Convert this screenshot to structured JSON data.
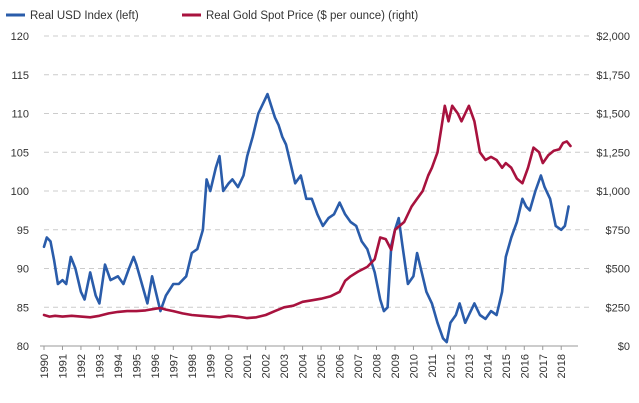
{
  "chart_data": {
    "type": "line",
    "legend": {
      "placement": "top-left"
    },
    "grid": {
      "horizontal": true,
      "vertical": false,
      "style": "dashed"
    },
    "x": {
      "type": "year",
      "range": [
        1990,
        2018.8
      ],
      "tick_labels": [
        "1990",
        "1991",
        "1992",
        "1993",
        "1994",
        "1995",
        "1996",
        "1997",
        "1998",
        "1999",
        "2000",
        "2001",
        "2002",
        "2003",
        "2004",
        "2005",
        "2006",
        "2007",
        "2008",
        "2009",
        "2010",
        "2011",
        "2012",
        "2013",
        "2014",
        "2015",
        "2016",
        "2017",
        "2018"
      ]
    },
    "y_left": {
      "range": [
        80,
        120
      ],
      "ticks": [
        80,
        85,
        90,
        95,
        100,
        105,
        110,
        115,
        120
      ],
      "tick_labels": [
        "80",
        "85",
        "90",
        "95",
        "100",
        "105",
        "110",
        "115",
        "120"
      ]
    },
    "y_right": {
      "range": [
        0,
        2000
      ],
      "ticks": [
        0,
        250,
        500,
        750,
        1000,
        1250,
        1500,
        1750,
        2000
      ],
      "tick_labels": [
        "$0",
        "$250",
        "$500",
        "$750",
        "$1,000",
        "$1,250",
        "$1,500",
        "$1,750",
        "$2,000"
      ]
    },
    "series": [
      {
        "name": "Real USD Index (left)",
        "axis": "left",
        "color": "#2a5caa",
        "points": [
          [
            1990.0,
            92.8
          ],
          [
            1990.15,
            94.0
          ],
          [
            1990.35,
            93.5
          ],
          [
            1990.55,
            91.0
          ],
          [
            1990.75,
            88.0
          ],
          [
            1991.0,
            88.5
          ],
          [
            1991.2,
            88.0
          ],
          [
            1991.45,
            91.5
          ],
          [
            1991.7,
            90.0
          ],
          [
            1992.0,
            87.0
          ],
          [
            1992.2,
            86.0
          ],
          [
            1992.5,
            89.5
          ],
          [
            1992.8,
            86.5
          ],
          [
            1993.0,
            85.5
          ],
          [
            1993.3,
            90.5
          ],
          [
            1993.6,
            88.5
          ],
          [
            1994.0,
            89.0
          ],
          [
            1994.3,
            88.0
          ],
          [
            1994.6,
            90.0
          ],
          [
            1994.85,
            91.5
          ],
          [
            1995.0,
            90.5
          ],
          [
            1995.3,
            88.0
          ],
          [
            1995.6,
            85.5
          ],
          [
            1995.85,
            89.0
          ],
          [
            1996.1,
            86.5
          ],
          [
            1996.3,
            84.5
          ],
          [
            1996.6,
            86.5
          ],
          [
            1997.0,
            88.0
          ],
          [
            1997.3,
            88.0
          ],
          [
            1997.7,
            89.0
          ],
          [
            1998.0,
            92.0
          ],
          [
            1998.3,
            92.5
          ],
          [
            1998.6,
            95.0
          ],
          [
            1998.8,
            101.5
          ],
          [
            1999.0,
            100.0
          ],
          [
            1999.3,
            103.0
          ],
          [
            1999.5,
            104.5
          ],
          [
            1999.7,
            100.0
          ],
          [
            2000.0,
            101.0
          ],
          [
            2000.2,
            101.5
          ],
          [
            2000.5,
            100.5
          ],
          [
            2000.8,
            102.0
          ],
          [
            2001.0,
            104.5
          ],
          [
            2001.3,
            107.0
          ],
          [
            2001.6,
            110.0
          ],
          [
            2001.9,
            111.5
          ],
          [
            2002.1,
            112.5
          ],
          [
            2002.3,
            111.0
          ],
          [
            2002.5,
            109.5
          ],
          [
            2002.7,
            108.5
          ],
          [
            2002.9,
            107.0
          ],
          [
            2003.1,
            106.0
          ],
          [
            2003.3,
            104.0
          ],
          [
            2003.6,
            101.0
          ],
          [
            2003.9,
            102.0
          ],
          [
            2004.2,
            99.0
          ],
          [
            2004.5,
            99.0
          ],
          [
            2004.8,
            97.0
          ],
          [
            2005.1,
            95.5
          ],
          [
            2005.4,
            96.5
          ],
          [
            2005.7,
            97.0
          ],
          [
            2006.0,
            98.5
          ],
          [
            2006.3,
            97.0
          ],
          [
            2006.6,
            96.0
          ],
          [
            2006.9,
            95.5
          ],
          [
            2007.2,
            93.5
          ],
          [
            2007.5,
            92.5
          ],
          [
            2007.9,
            89.5
          ],
          [
            2008.2,
            86.0
          ],
          [
            2008.4,
            84.5
          ],
          [
            2008.6,
            85.0
          ],
          [
            2008.8,
            93.0
          ],
          [
            2009.0,
            95.0
          ],
          [
            2009.2,
            96.5
          ],
          [
            2009.4,
            93.0
          ],
          [
            2009.7,
            88.0
          ],
          [
            2010.0,
            89.0
          ],
          [
            2010.2,
            92.0
          ],
          [
            2010.4,
            90.0
          ],
          [
            2010.7,
            87.0
          ],
          [
            2011.0,
            85.5
          ],
          [
            2011.3,
            83.0
          ],
          [
            2011.6,
            81.0
          ],
          [
            2011.8,
            80.5
          ],
          [
            2012.0,
            83.0
          ],
          [
            2012.3,
            84.0
          ],
          [
            2012.5,
            85.5
          ],
          [
            2012.8,
            83.0
          ],
          [
            2013.0,
            84.0
          ],
          [
            2013.3,
            85.5
          ],
          [
            2013.6,
            84.0
          ],
          [
            2013.9,
            83.5
          ],
          [
            2014.2,
            84.5
          ],
          [
            2014.5,
            84.0
          ],
          [
            2014.8,
            87.0
          ],
          [
            2015.0,
            91.5
          ],
          [
            2015.3,
            94.0
          ],
          [
            2015.6,
            96.0
          ],
          [
            2015.9,
            99.0
          ],
          [
            2016.1,
            98.0
          ],
          [
            2016.3,
            97.5
          ],
          [
            2016.6,
            100.0
          ],
          [
            2016.9,
            102.0
          ],
          [
            2017.1,
            100.5
          ],
          [
            2017.4,
            99.0
          ],
          [
            2017.7,
            95.5
          ],
          [
            2018.0,
            95.0
          ],
          [
            2018.2,
            95.5
          ],
          [
            2018.4,
            98.0
          ]
        ]
      },
      {
        "name": "Real Gold Spot Price ($ per ounce) (right)",
        "axis": "right",
        "color": "#a8123e",
        "points": [
          [
            1990.0,
            200
          ],
          [
            1990.3,
            190
          ],
          [
            1990.6,
            195
          ],
          [
            1991.0,
            190
          ],
          [
            1991.5,
            195
          ],
          [
            1992.0,
            190
          ],
          [
            1992.5,
            185
          ],
          [
            1993.0,
            195
          ],
          [
            1993.5,
            210
          ],
          [
            1994.0,
            220
          ],
          [
            1994.5,
            225
          ],
          [
            1995.0,
            225
          ],
          [
            1995.5,
            230
          ],
          [
            1996.0,
            240
          ],
          [
            1996.3,
            245
          ],
          [
            1996.6,
            235
          ],
          [
            1997.0,
            225
          ],
          [
            1997.5,
            210
          ],
          [
            1998.0,
            200
          ],
          [
            1998.5,
            195
          ],
          [
            1999.0,
            190
          ],
          [
            1999.5,
            185
          ],
          [
            2000.0,
            195
          ],
          [
            2000.5,
            190
          ],
          [
            2001.0,
            180
          ],
          [
            2001.5,
            185
          ],
          [
            2002.0,
            200
          ],
          [
            2002.5,
            225
          ],
          [
            2003.0,
            250
          ],
          [
            2003.5,
            260
          ],
          [
            2004.0,
            285
          ],
          [
            2004.5,
            295
          ],
          [
            2005.0,
            305
          ],
          [
            2005.5,
            320
          ],
          [
            2006.0,
            350
          ],
          [
            2006.3,
            420
          ],
          [
            2006.6,
            450
          ],
          [
            2007.0,
            480
          ],
          [
            2007.5,
            510
          ],
          [
            2007.9,
            560
          ],
          [
            2008.2,
            700
          ],
          [
            2008.5,
            690
          ],
          [
            2008.8,
            620
          ],
          [
            2009.0,
            750
          ],
          [
            2009.5,
            800
          ],
          [
            2009.9,
            900
          ],
          [
            2010.2,
            950
          ],
          [
            2010.5,
            1000
          ],
          [
            2010.8,
            1100
          ],
          [
            2011.0,
            1150
          ],
          [
            2011.3,
            1250
          ],
          [
            2011.5,
            1400
          ],
          [
            2011.7,
            1550
          ],
          [
            2011.9,
            1450
          ],
          [
            2012.1,
            1550
          ],
          [
            2012.4,
            1500
          ],
          [
            2012.6,
            1450
          ],
          [
            2012.8,
            1500
          ],
          [
            2013.0,
            1550
          ],
          [
            2013.3,
            1450
          ],
          [
            2013.6,
            1250
          ],
          [
            2013.9,
            1200
          ],
          [
            2014.2,
            1220
          ],
          [
            2014.5,
            1200
          ],
          [
            2014.8,
            1150
          ],
          [
            2015.0,
            1180
          ],
          [
            2015.3,
            1150
          ],
          [
            2015.6,
            1080
          ],
          [
            2015.9,
            1050
          ],
          [
            2016.2,
            1150
          ],
          [
            2016.5,
            1280
          ],
          [
            2016.8,
            1250
          ],
          [
            2017.0,
            1180
          ],
          [
            2017.3,
            1230
          ],
          [
            2017.6,
            1260
          ],
          [
            2017.9,
            1270
          ],
          [
            2018.1,
            1310
          ],
          [
            2018.3,
            1320
          ],
          [
            2018.5,
            1290
          ]
        ]
      }
    ]
  }
}
